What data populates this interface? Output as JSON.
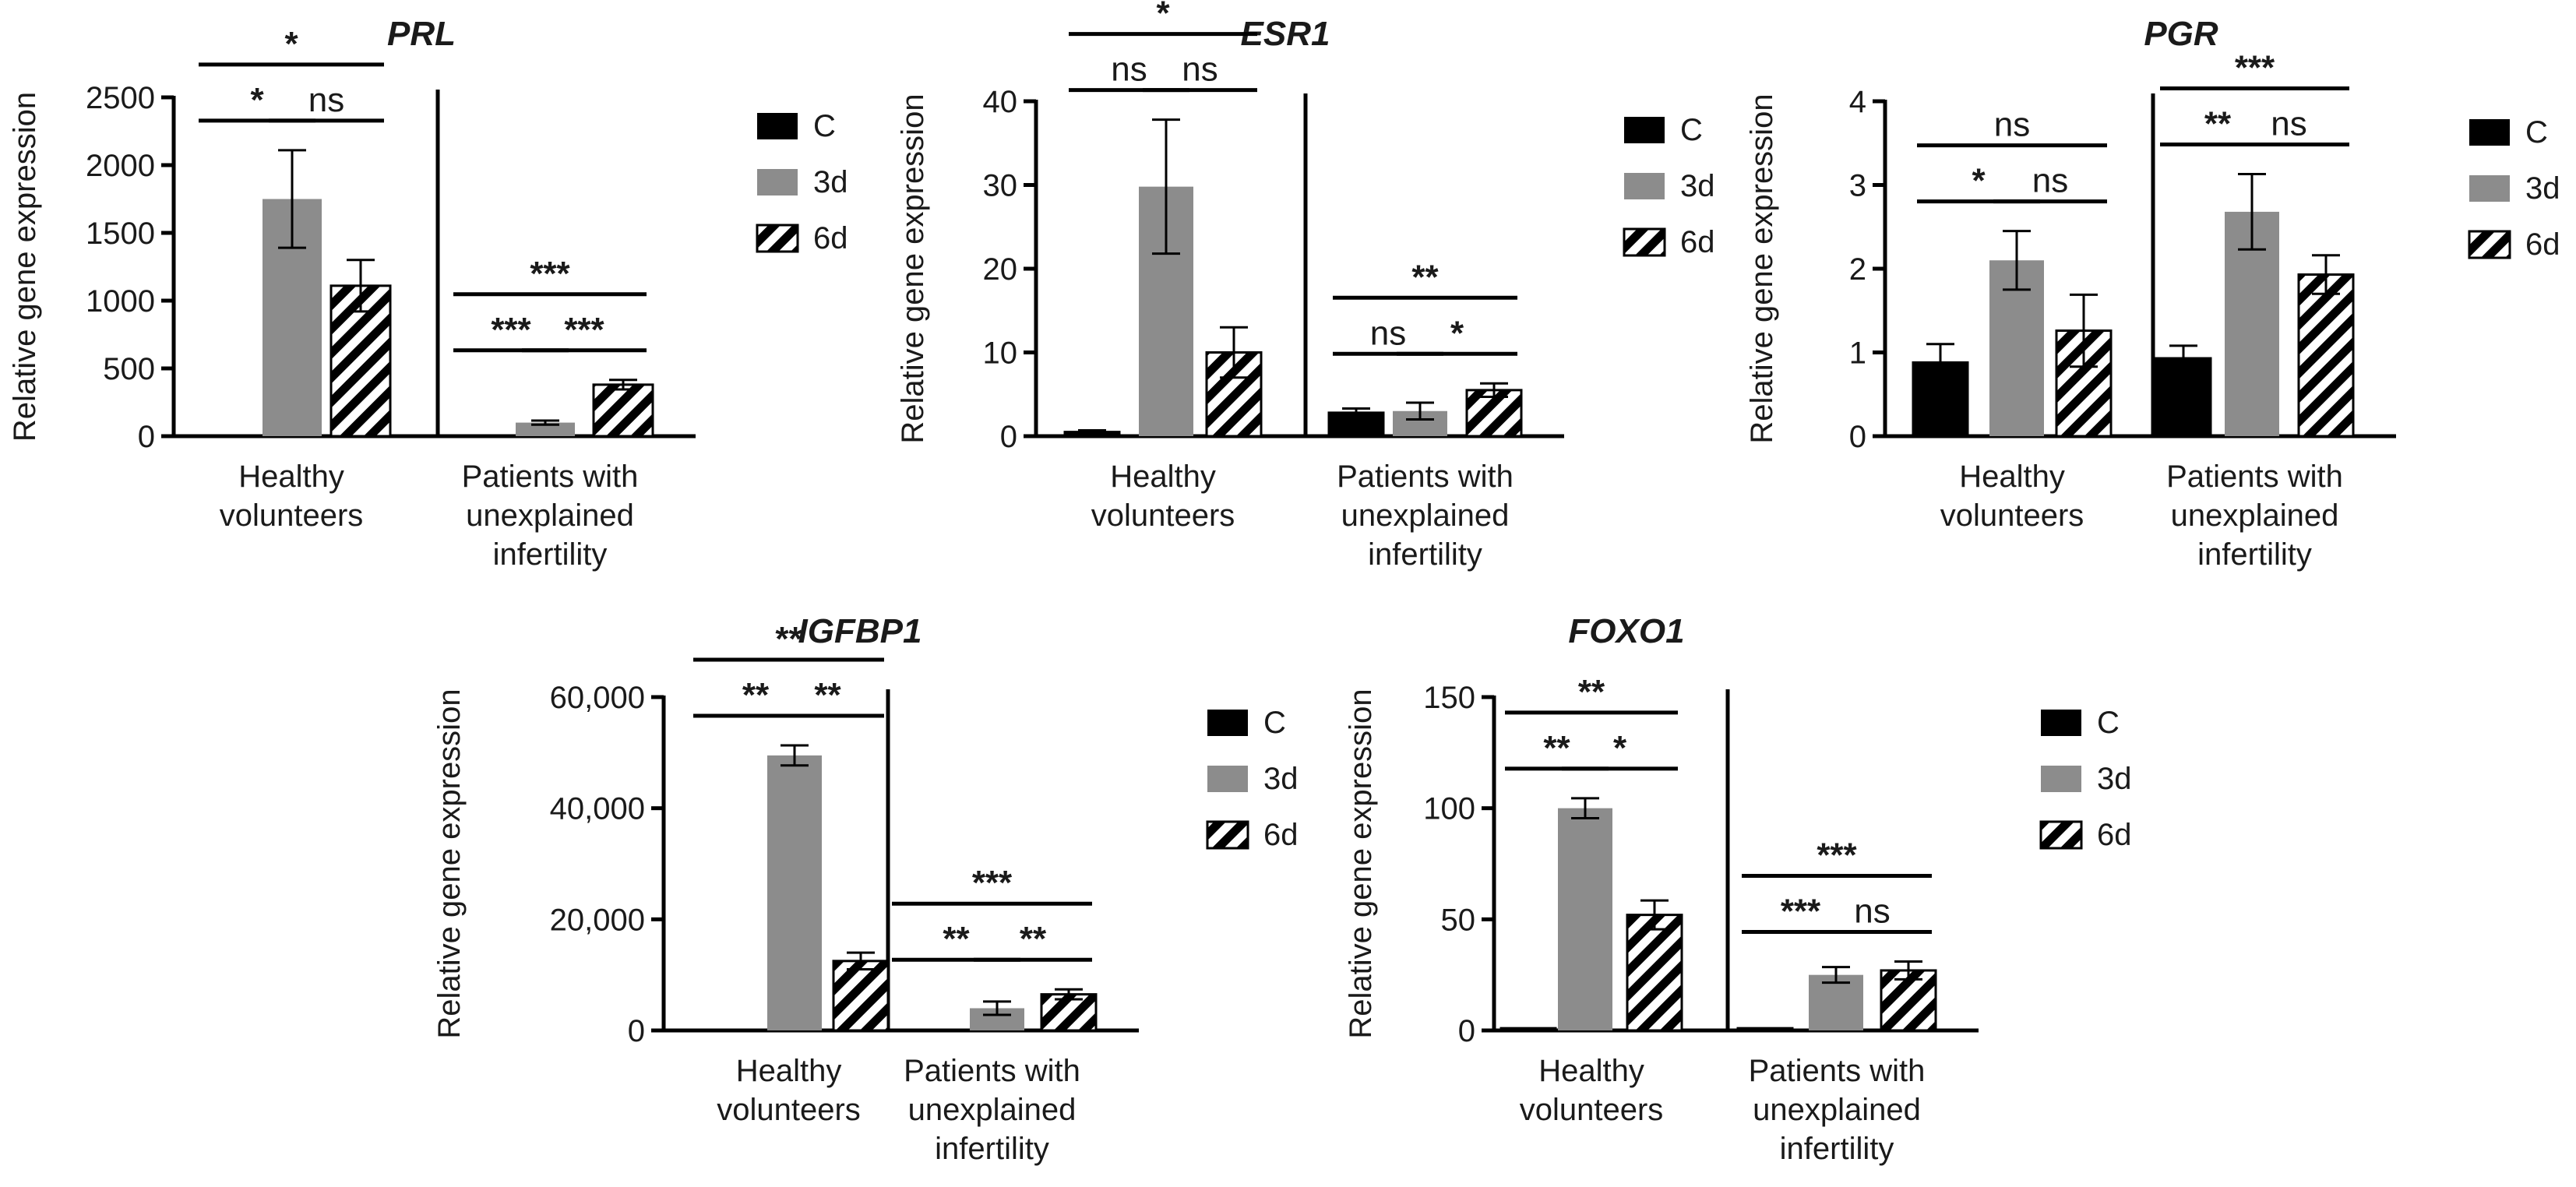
{
  "legend": {
    "items": [
      {
        "label": "C",
        "style": "solid",
        "color": "#000000"
      },
      {
        "label": "3d",
        "style": "solid",
        "color": "#8c8c8c"
      },
      {
        "label": "6d",
        "style": "hatch",
        "color": "#000000"
      }
    ]
  },
  "chart_data": [
    {
      "type": "bar",
      "title": "PRL",
      "ylabel": "Relative gene expression",
      "ylim": [
        0,
        2500
      ],
      "yticks": [
        "0",
        "500",
        "1000",
        "1500",
        "2000",
        "2500"
      ],
      "yticks_values": [
        0,
        500,
        1000,
        1500,
        2000,
        2500
      ],
      "groups": [
        "Healthy volunteers",
        "Patients with unexplained infertility"
      ],
      "group_label_lines": [
        [
          "Healthy",
          "volunteers"
        ],
        [
          "Patients with",
          "unexplained",
          "infertility"
        ]
      ],
      "series": [
        {
          "name": "C",
          "values": [
            0,
            0
          ],
          "errors": [
            0,
            0
          ]
        },
        {
          "name": "3d",
          "values": [
            1750,
            100
          ],
          "errors": [
            360,
            15
          ]
        },
        {
          "name": "6d",
          "values": [
            1110,
            380
          ],
          "errors": [
            190,
            35
          ]
        }
      ],
      "significance": [
        {
          "group": 0,
          "from": 0,
          "to": 1,
          "label": "*",
          "level": 0
        },
        {
          "group": 0,
          "from": 1,
          "to": 2,
          "label": "ns",
          "level": 0
        },
        {
          "group": 0,
          "from": 0,
          "to": 2,
          "label": "*",
          "level": 1
        },
        {
          "group": 1,
          "from": 0,
          "to": 1,
          "label": "***",
          "level": 0
        },
        {
          "group": 1,
          "from": 1,
          "to": 2,
          "label": "***",
          "level": 0
        },
        {
          "group": 1,
          "from": 0,
          "to": 2,
          "label": "***",
          "level": 1
        }
      ]
    },
    {
      "type": "bar",
      "title": "ESR1",
      "ylabel": "Relative gene expression",
      "ylim": [
        0,
        40
      ],
      "yticks": [
        "0",
        "10",
        "20",
        "30",
        "40"
      ],
      "yticks_values": [
        0,
        10,
        20,
        30,
        40
      ],
      "groups": [
        "Healthy volunteers",
        "Patients with unexplained infertility"
      ],
      "group_label_lines": [
        [
          "Healthy",
          "volunteers"
        ],
        [
          "Patients with",
          "unexplained",
          "infertility"
        ]
      ],
      "series": [
        {
          "name": "C",
          "values": [
            0.5,
            2.8
          ],
          "errors": [
            0.2,
            0.5
          ]
        },
        {
          "name": "3d",
          "values": [
            29.8,
            3.0
          ],
          "errors": [
            8,
            1
          ]
        },
        {
          "name": "6d",
          "values": [
            10.0,
            5.5
          ],
          "errors": [
            3,
            0.8
          ]
        }
      ],
      "significance": [
        {
          "group": 0,
          "from": 0,
          "to": 1,
          "label": "ns",
          "level": 0
        },
        {
          "group": 0,
          "from": 1,
          "to": 2,
          "label": "ns",
          "level": 0
        },
        {
          "group": 0,
          "from": 0,
          "to": 2,
          "label": "*",
          "level": 1
        },
        {
          "group": 1,
          "from": 0,
          "to": 1,
          "label": "ns",
          "level": 0
        },
        {
          "group": 1,
          "from": 1,
          "to": 2,
          "label": "*",
          "level": 0
        },
        {
          "group": 1,
          "from": 0,
          "to": 2,
          "label": "**",
          "level": 1
        }
      ]
    },
    {
      "type": "bar",
      "title": "PGR",
      "ylabel": "Relative gene expression",
      "ylim": [
        0,
        4
      ],
      "yticks": [
        "0",
        "1",
        "2",
        "3",
        "4"
      ],
      "yticks_values": [
        0,
        1,
        2,
        3,
        4
      ],
      "groups": [
        "Healthy volunteers",
        "Patients with unexplained infertility"
      ],
      "group_label_lines": [
        [
          "Healthy",
          "volunteers"
        ],
        [
          "Patients with",
          "unexplained",
          "infertility"
        ]
      ],
      "series": [
        {
          "name": "C",
          "values": [
            0.88,
            0.93
          ],
          "errors": [
            0.22,
            0.15
          ]
        },
        {
          "name": "3d",
          "values": [
            2.1,
            2.68
          ],
          "errors": [
            0.35,
            0.45
          ]
        },
        {
          "name": "6d",
          "values": [
            1.26,
            1.93
          ],
          "errors": [
            0.43,
            0.23
          ]
        }
      ],
      "significance": [
        {
          "group": 0,
          "from": 0,
          "to": 1,
          "label": "*",
          "level": 0
        },
        {
          "group": 0,
          "from": 1,
          "to": 2,
          "label": "ns",
          "level": 0
        },
        {
          "group": 0,
          "from": 0,
          "to": 2,
          "label": "ns",
          "level": 1
        },
        {
          "group": 1,
          "from": 0,
          "to": 1,
          "label": "**",
          "level": 0
        },
        {
          "group": 1,
          "from": 1,
          "to": 2,
          "label": "ns",
          "level": 0
        },
        {
          "group": 1,
          "from": 0,
          "to": 2,
          "label": "***",
          "level": 1
        }
      ]
    },
    {
      "type": "bar",
      "title": "IGFBP1",
      "ylabel": "Relative gene expression",
      "ylim": [
        0,
        60000
      ],
      "yticks": [
        "0",
        "20,000",
        "40,000",
        "60,000"
      ],
      "yticks_values": [
        0,
        20000,
        40000,
        60000
      ],
      "groups": [
        "Healthy volunteers",
        "Patients with unexplained infertility"
      ],
      "group_label_lines": [
        [
          "Healthy",
          "volunteers"
        ],
        [
          "Patients with",
          "unexplained",
          "infertility"
        ]
      ],
      "series": [
        {
          "name": "C",
          "values": [
            0,
            0
          ],
          "errors": [
            0,
            0
          ]
        },
        {
          "name": "3d",
          "values": [
            49500,
            4000
          ],
          "errors": [
            1800,
            1200
          ]
        },
        {
          "name": "6d",
          "values": [
            12500,
            6500
          ],
          "errors": [
            1500,
            900
          ]
        }
      ],
      "significance": [
        {
          "group": 0,
          "from": 0,
          "to": 1,
          "label": "**",
          "level": 0
        },
        {
          "group": 0,
          "from": 1,
          "to": 2,
          "label": "**",
          "level": 0
        },
        {
          "group": 0,
          "from": 0,
          "to": 2,
          "label": "**",
          "level": 1
        },
        {
          "group": 1,
          "from": 0,
          "to": 1,
          "label": "**",
          "level": 0
        },
        {
          "group": 1,
          "from": 1,
          "to": 2,
          "label": "**",
          "level": 0
        },
        {
          "group": 1,
          "from": 0,
          "to": 2,
          "label": "***",
          "level": 1
        }
      ]
    },
    {
      "type": "bar",
      "title": "FOXO1",
      "ylabel": "Relative gene expression",
      "ylim": [
        0,
        150
      ],
      "yticks": [
        "0",
        "50",
        "100",
        "150"
      ],
      "yticks_values": [
        0,
        50,
        100,
        150
      ],
      "groups": [
        "Healthy volunteers",
        "Patients with unexplained infertility"
      ],
      "group_label_lines": [
        [
          "Healthy",
          "volunteers"
        ],
        [
          "Patients with",
          "unexplained",
          "infertility"
        ]
      ],
      "series": [
        {
          "name": "C",
          "values": [
            1,
            1
          ],
          "errors": [
            0,
            0
          ]
        },
        {
          "name": "3d",
          "values": [
            100,
            25
          ],
          "errors": [
            4.5,
            3.5
          ]
        },
        {
          "name": "6d",
          "values": [
            52,
            27
          ],
          "errors": [
            6.5,
            4
          ]
        }
      ],
      "significance": [
        {
          "group": 0,
          "from": 0,
          "to": 1,
          "label": "**",
          "level": 0
        },
        {
          "group": 0,
          "from": 1,
          "to": 2,
          "label": "*",
          "level": 0
        },
        {
          "group": 0,
          "from": 0,
          "to": 2,
          "label": "**",
          "level": 1
        },
        {
          "group": 1,
          "from": 0,
          "to": 1,
          "label": "***",
          "level": 0
        },
        {
          "group": 1,
          "from": 1,
          "to": 2,
          "label": "ns",
          "level": 0
        },
        {
          "group": 1,
          "from": 0,
          "to": 2,
          "label": "***",
          "level": 1
        }
      ]
    }
  ]
}
